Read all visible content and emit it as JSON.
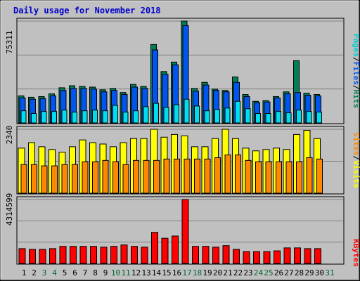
{
  "chart_title": "Daily usage for November 2018",
  "colors": {
    "background": "#c0c0c0",
    "panel": "#c0c0c0",
    "title_text": "#0000cc",
    "grid": "#808080",
    "day_weekday": "#000000",
    "day_weekend": "#006633",
    "hits": "#00cccc",
    "files": "#0055ee",
    "pages": "#00ddee",
    "visits": "#ffff00",
    "sites": "#ff8800",
    "kbytes": "#ff0000",
    "bar_outline": "#000000",
    "hits_highlight": "#007f55"
  },
  "chart_data": [
    {
      "type": "bar",
      "panel": "top",
      "ytick_label": "75311",
      "ylim": [
        0,
        75311
      ],
      "right_labels": [
        "Pages",
        "Files",
        "Hits"
      ],
      "right_label_colors": [
        "#00cccc",
        "#0055ee",
        "#007f55"
      ],
      "separator": "/",
      "categories": [
        "1",
        "2",
        "3",
        "4",
        "5",
        "6",
        "7",
        "8",
        "9",
        "10",
        "11",
        "12",
        "13",
        "14",
        "15",
        "16",
        "17",
        "18",
        "19",
        "20",
        "21",
        "22",
        "23",
        "24",
        "25",
        "26",
        "27",
        "28",
        "29",
        "30"
      ],
      "series": [
        {
          "name": "Hits",
          "values": [
            20000,
            19000,
            19500,
            21500,
            26000,
            27500,
            27000,
            26500,
            24500,
            25500,
            22500,
            28500,
            27000,
            58000,
            38000,
            45000,
            75311,
            25500,
            30000,
            25000,
            24000,
            34000,
            21000,
            16000,
            16500,
            19500,
            23000,
            46000,
            22000,
            21000
          ]
        },
        {
          "name": "Files",
          "values": [
            18500,
            17500,
            18000,
            20000,
            24000,
            25500,
            25500,
            25000,
            23000,
            24000,
            21000,
            26500,
            25500,
            54000,
            36000,
            43000,
            72000,
            23500,
            28000,
            24000,
            23000,
            30000,
            19500,
            15000,
            15500,
            18500,
            21500,
            22500,
            20500,
            20000
          ]
        },
        {
          "name": "Pages",
          "values": [
            9000,
            7000,
            8500,
            8500,
            9500,
            8000,
            9000,
            9500,
            9000,
            13000,
            8000,
            9000,
            12000,
            14500,
            11500,
            13500,
            17500,
            12500,
            9000,
            10000,
            11000,
            16000,
            10500,
            7000,
            7000,
            8500,
            7500,
            9500,
            8500,
            8000
          ]
        }
      ]
    },
    {
      "type": "bar",
      "panel": "middle",
      "ytick_label": "2340",
      "ylim": [
        0,
        2340
      ],
      "right_labels": [
        "Sites",
        "Visits"
      ],
      "right_label_colors": [
        "#ff8800",
        "#ffff00"
      ],
      "separator": "/",
      "categories": [
        "1",
        "2",
        "3",
        "4",
        "5",
        "6",
        "7",
        "8",
        "9",
        "10",
        "11",
        "12",
        "13",
        "14",
        "15",
        "16",
        "17",
        "18",
        "19",
        "20",
        "21",
        "22",
        "23",
        "24",
        "25",
        "26",
        "27",
        "28",
        "29",
        "30"
      ],
      "series": [
        {
          "name": "Visits",
          "values": [
            1650,
            1850,
            1700,
            1600,
            1500,
            1700,
            1950,
            1850,
            1800,
            1700,
            1850,
            2000,
            2000,
            2340,
            2050,
            2150,
            2100,
            1700,
            1700,
            2000,
            2340,
            2000,
            1650,
            1550,
            1600,
            1650,
            1600,
            2150,
            2300,
            2000
          ]
        },
        {
          "name": "Sites",
          "values": [
            1050,
            1050,
            1000,
            1000,
            1050,
            1050,
            1150,
            1150,
            1200,
            1150,
            1050,
            1200,
            1200,
            1200,
            1250,
            1250,
            1250,
            1250,
            1250,
            1300,
            1400,
            1400,
            1200,
            1150,
            1150,
            1150,
            1150,
            1150,
            1300,
            1250
          ]
        }
      ]
    },
    {
      "type": "bar",
      "panel": "bottom",
      "ytick_label": "4314599",
      "ylim": [
        0,
        4314599
      ],
      "right_labels": [
        "KBytes"
      ],
      "right_label_colors": [
        "#ff0000"
      ],
      "categories": [
        "1",
        "2",
        "3",
        "4",
        "5",
        "6",
        "7",
        "8",
        "9",
        "10",
        "11",
        "12",
        "13",
        "14",
        "15",
        "16",
        "17",
        "18",
        "19",
        "20",
        "21",
        "22",
        "23",
        "24",
        "25",
        "26",
        "27",
        "28",
        "29",
        "30"
      ],
      "series": [
        {
          "name": "KBytes",
          "values": [
            1000000,
            950000,
            950000,
            1000000,
            1150000,
            1150000,
            1150000,
            1150000,
            1100000,
            1150000,
            1250000,
            1150000,
            1100000,
            2100000,
            1700000,
            1850000,
            4314599,
            1150000,
            1150000,
            1100000,
            1200000,
            950000,
            800000,
            800000,
            800000,
            850000,
            1050000,
            1050000,
            1000000,
            1000000
          ]
        }
      ]
    }
  ],
  "x_axis": {
    "labels": [
      "1",
      "2",
      "3",
      "4",
      "5",
      "6",
      "7",
      "8",
      "9",
      "10",
      "11",
      "12",
      "13",
      "14",
      "15",
      "16",
      "17",
      "18",
      "19",
      "20",
      "21",
      "22",
      "23",
      "24",
      "25",
      "26",
      "27",
      "28",
      "29",
      "30",
      "31"
    ],
    "weekend": [
      false,
      false,
      true,
      true,
      false,
      false,
      false,
      false,
      false,
      true,
      true,
      false,
      false,
      false,
      false,
      false,
      true,
      true,
      false,
      false,
      false,
      false,
      false,
      true,
      true,
      false,
      false,
      false,
      false,
      false,
      true
    ]
  }
}
